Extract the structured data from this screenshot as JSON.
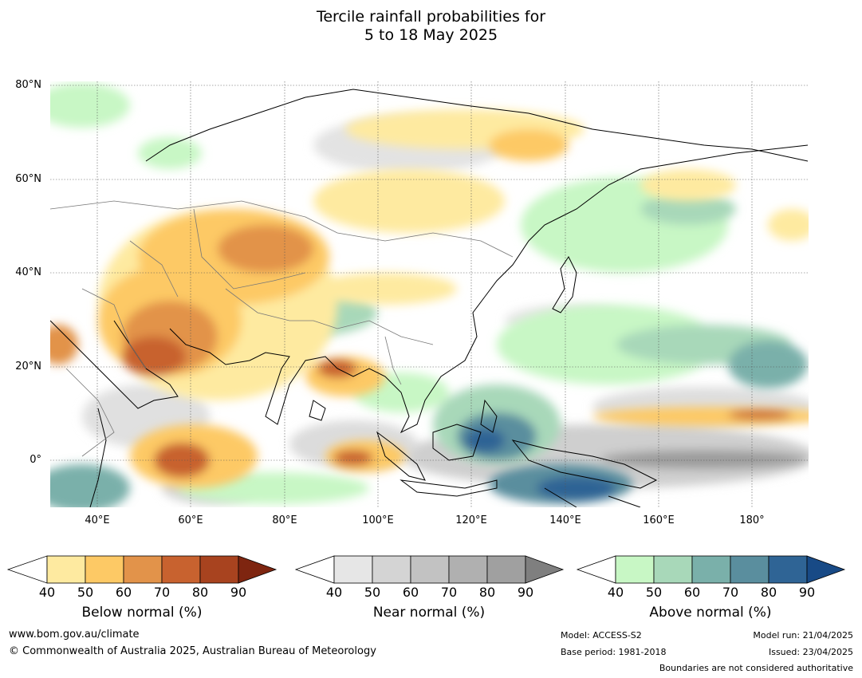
{
  "title_line1": "Tercile rainfall probabilities for",
  "title_line2": "5 to 18 May 2025",
  "lat_labels": [
    "80°N",
    "60°N",
    "40°N",
    "20°N",
    "0°"
  ],
  "lon_labels": [
    "40°E",
    "60°E",
    "80°E",
    "100°E",
    "120°E",
    "140°E",
    "160°E",
    "180°"
  ],
  "legends": [
    {
      "title": "Below normal (%)",
      "ticks": [
        "40",
        "50",
        "60",
        "70",
        "80",
        "90"
      ],
      "colors": [
        "#ffffff",
        "#feeaa0",
        "#fdc965",
        "#e2934a",
        "#c8622f",
        "#a8431f",
        "#7e2510"
      ]
    },
    {
      "title": "Near normal (%)",
      "ticks": [
        "40",
        "50",
        "60",
        "70",
        "80",
        "90"
      ],
      "colors": [
        "#ffffff",
        "#e6e6e6",
        "#d4d4d4",
        "#c2c2c2",
        "#b0b0b0",
        "#a0a0a0",
        "#7f7f7f"
      ]
    },
    {
      "title": "Above normal (%)",
      "ticks": [
        "40",
        "50",
        "60",
        "70",
        "80",
        "90"
      ],
      "colors": [
        "#ffffff",
        "#c8f7c5",
        "#a8d8b9",
        "#7ab0aa",
        "#5a8e9e",
        "#2f6495",
        "#184a86"
      ]
    }
  ],
  "footer": {
    "url": "www.bom.gov.au/climate",
    "copyright": "© Commonwealth of Australia 2025, Australian Bureau of Meteorology",
    "model": "Model: ACCESS-S2",
    "base_period": "Base period: 1981-2018",
    "model_run": "Model run: 21/04/2025",
    "issued": "Issued: 23/04/2025",
    "boundaries": "Boundaries are not considered authoritative"
  }
}
